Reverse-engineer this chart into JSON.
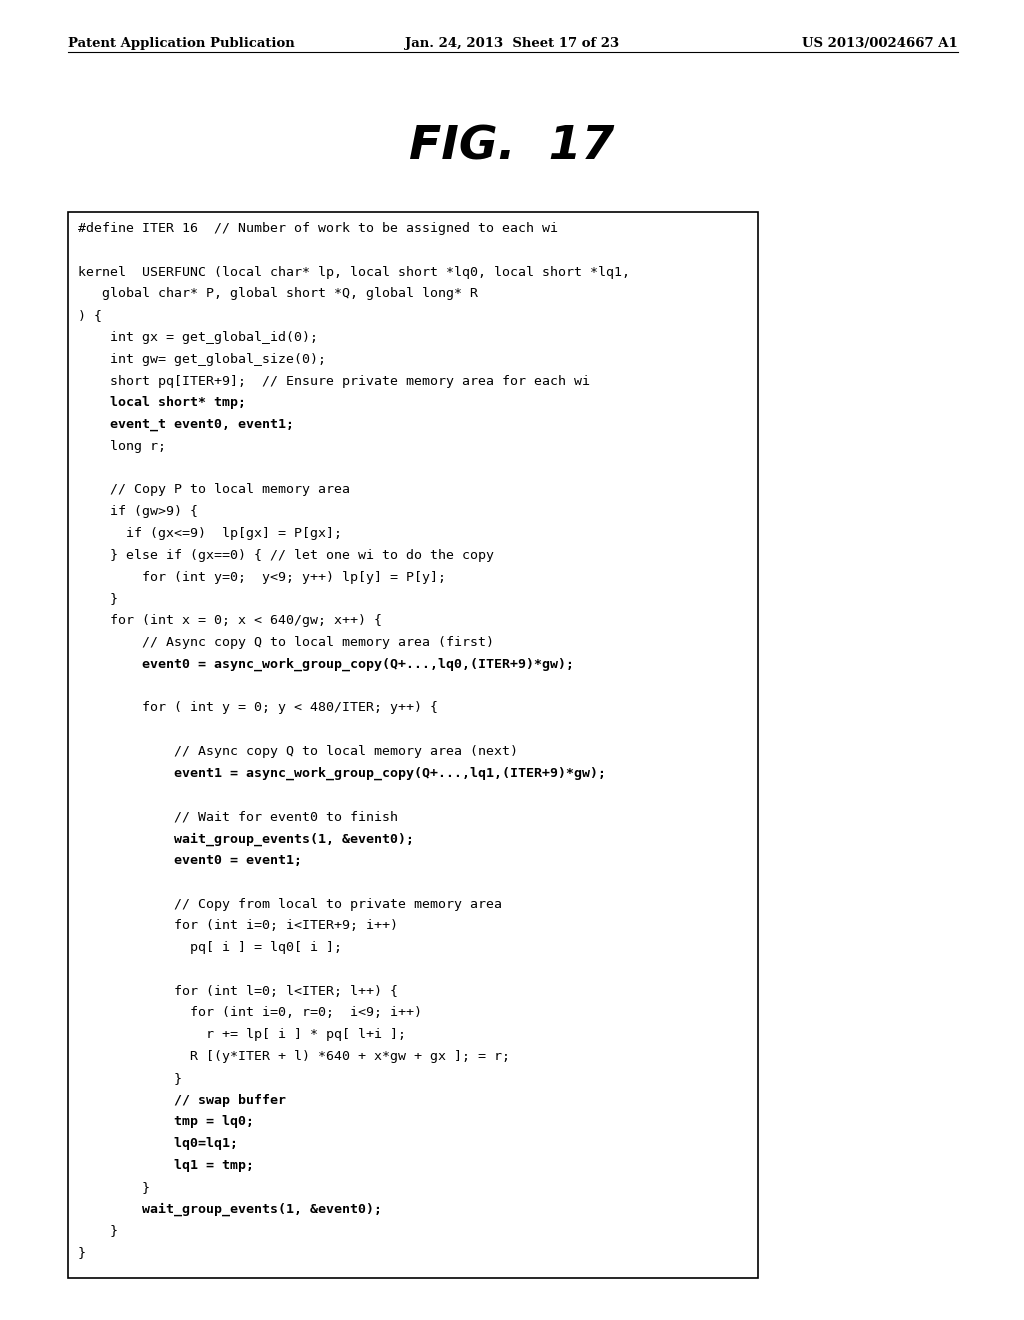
{
  "header_left": "Patent Application Publication",
  "header_mid": "Jan. 24, 2013  Sheet 17 of 23",
  "header_right": "US 2013/0024667 A1",
  "figure_title": "FIG.  17",
  "code_lines": [
    {
      "text": "#define ITER 16  // Number of work to be assigned to each wi",
      "bold": false
    },
    {
      "text": "",
      "bold": false
    },
    {
      "text": "kernel  USERFUNC (local char* lp, local short *lq0, local short *lq1,",
      "bold": false
    },
    {
      "text": "   global char* P, global short *Q, global long* R",
      "bold": false
    },
    {
      "text": ") {",
      "bold": false
    },
    {
      "text": "    int gx = get_global_id(0);",
      "bold": false
    },
    {
      "text": "    int gw= get_global_size(0);",
      "bold": false
    },
    {
      "text": "    short pq[ITER+9];  // Ensure private memory area for each wi",
      "bold": false
    },
    {
      "text": "    local short* tmp;",
      "bold": true
    },
    {
      "text": "    event_t event0, event1;",
      "bold": true
    },
    {
      "text": "    long r;",
      "bold": false
    },
    {
      "text": "",
      "bold": false
    },
    {
      "text": "    // Copy P to local memory area",
      "bold": false
    },
    {
      "text": "    if (gw>9) {",
      "bold": false
    },
    {
      "text": "      if (gx<=9)  lp[gx] = P[gx];",
      "bold": false
    },
    {
      "text": "    } else if (gx==0) { // let one wi to do the copy",
      "bold": false
    },
    {
      "text": "        for (int y=0;  y<9; y++) lp[y] = P[y];",
      "bold": false
    },
    {
      "text": "    }",
      "bold": false
    },
    {
      "text": "    for (int x = 0; x < 640/gw; x++) {",
      "bold": false
    },
    {
      "text": "        // Async copy Q to local memory area (first)",
      "bold": false
    },
    {
      "text": "        event0 = async_work_group_copy(Q+...,lq0,(ITER+9)*gw);",
      "bold": true
    },
    {
      "text": "",
      "bold": false
    },
    {
      "text": "        for ( int y = 0; y < 480/ITER; y++) {",
      "bold": false
    },
    {
      "text": "",
      "bold": false
    },
    {
      "text": "            // Async copy Q to local memory area (next)",
      "bold": false
    },
    {
      "text": "            event1 = async_work_group_copy(Q+...,lq1,(ITER+9)*gw);",
      "bold": true
    },
    {
      "text": "",
      "bold": false
    },
    {
      "text": "            // Wait for event0 to finish",
      "bold": false
    },
    {
      "text": "            wait_group_events(1, &event0);",
      "bold": true
    },
    {
      "text": "            event0 = event1;",
      "bold": true
    },
    {
      "text": "",
      "bold": false
    },
    {
      "text": "            // Copy from local to private memory area",
      "bold": false
    },
    {
      "text": "            for (int i=0; i<ITER+9; i++)",
      "bold": false
    },
    {
      "text": "              pq[ i ] = lq0[ i ];",
      "bold": false
    },
    {
      "text": "",
      "bold": false
    },
    {
      "text": "            for (int l=0; l<ITER; l++) {",
      "bold": false
    },
    {
      "text": "              for (int i=0, r=0;  i<9; i++)",
      "bold": false
    },
    {
      "text": "                r += lp[ i ] * pq[ l+i ];",
      "bold": false
    },
    {
      "text": "              R [(y*ITER + l) *640 + x*gw + gx ]; = r;",
      "bold": false
    },
    {
      "text": "            }",
      "bold": false
    },
    {
      "text": "            // swap buffer",
      "bold": true
    },
    {
      "text": "            tmp = lq0;",
      "bold": true
    },
    {
      "text": "            lq0=lq1;",
      "bold": true
    },
    {
      "text": "            lq1 = tmp;",
      "bold": true
    },
    {
      "text": "        }",
      "bold": false
    },
    {
      "text": "        wait_group_events(1, &event0);",
      "bold": true
    },
    {
      "text": "    }",
      "bold": false
    },
    {
      "text": "}",
      "bold": false
    }
  ],
  "box_bg": "#ffffff",
  "box_edge": "#000000",
  "page_bg": "#ffffff",
  "text_color": "#000000",
  "code_font_size": 9.5,
  "header_font_size": 9.5,
  "title_font_size": 34
}
